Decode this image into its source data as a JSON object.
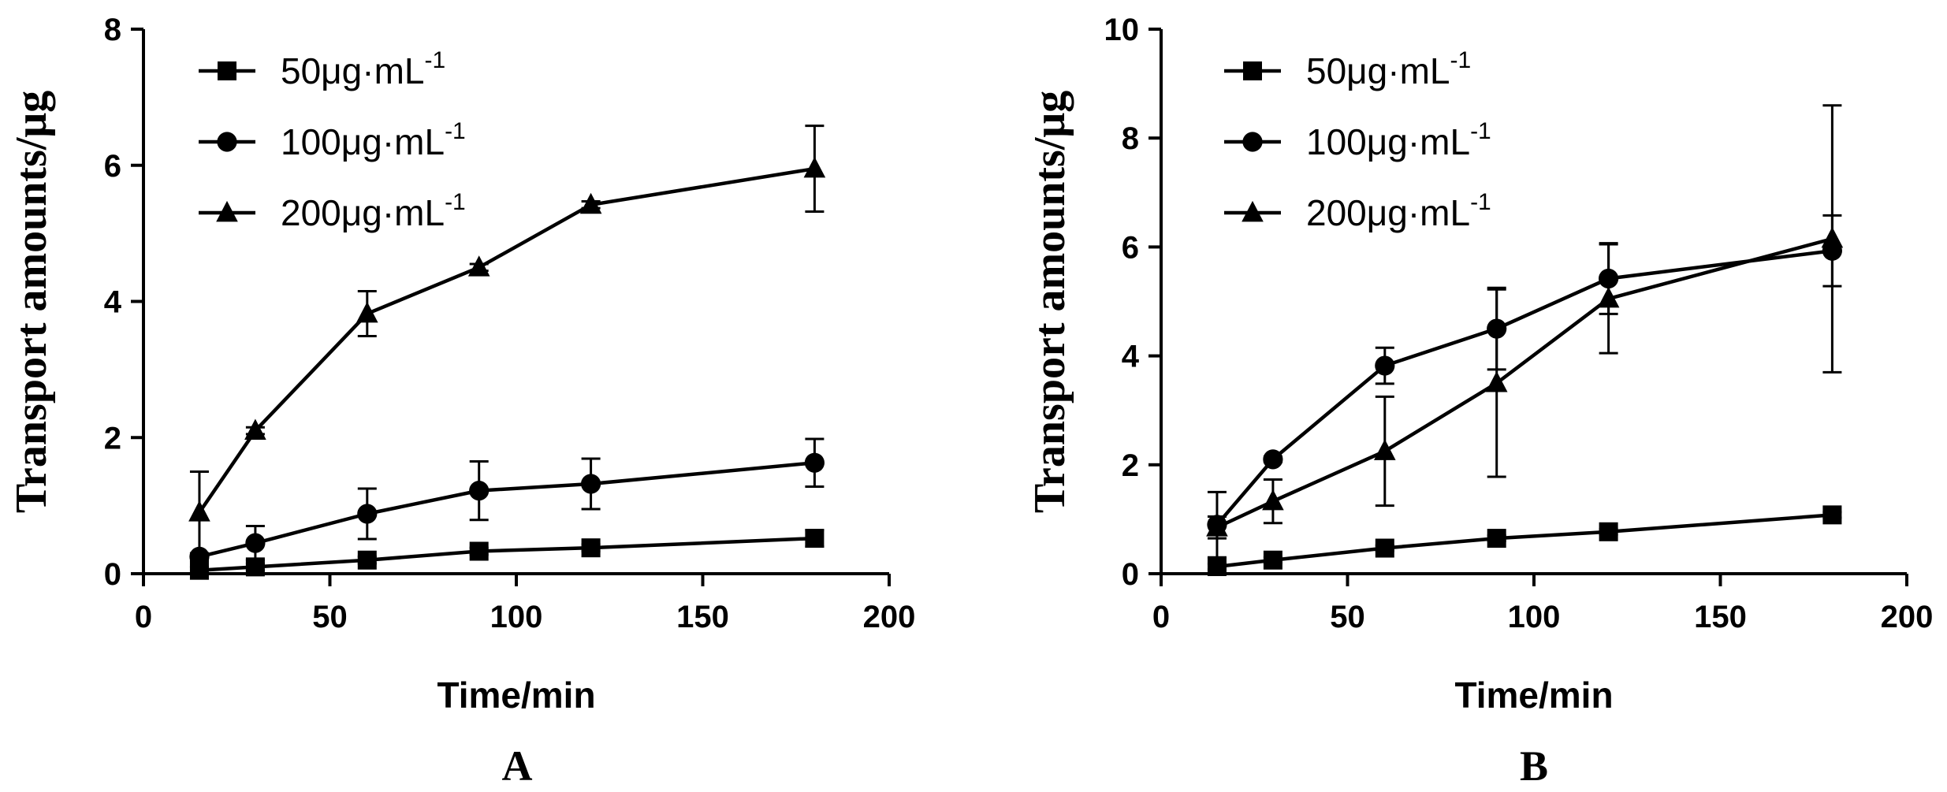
{
  "chart_data": [
    {
      "panel": "A",
      "type": "line",
      "xlabel": "Time/min",
      "ylabel": "Transport amounts/μg",
      "xlim": [
        0,
        200
      ],
      "ylim": [
        0,
        8
      ],
      "xticks": [
        0,
        50,
        100,
        150,
        200
      ],
      "yticks": [
        0,
        2,
        4,
        6,
        8
      ],
      "x": [
        15,
        30,
        60,
        90,
        120,
        180
      ],
      "legend_position": "top-left",
      "series": [
        {
          "name": "50μg·mL",
          "sup": "-1",
          "marker": "square",
          "values": [
            0.05,
            0.1,
            0.2,
            0.33,
            0.38,
            0.52
          ],
          "errors": [
            0.05,
            0.05,
            0.05,
            0.05,
            0.05,
            0.12
          ]
        },
        {
          "name": "100μg·mL",
          "sup": "-1",
          "marker": "circle",
          "values": [
            0.25,
            0.45,
            0.88,
            1.22,
            1.32,
            1.63
          ],
          "errors": [
            0.05,
            0.25,
            0.37,
            0.43,
            0.37,
            0.35
          ]
        },
        {
          "name": "200μg·mL",
          "sup": "-1",
          "marker": "triangle",
          "values": [
            0.9,
            2.1,
            3.82,
            4.5,
            5.42,
            5.95
          ],
          "errors": [
            0.6,
            0.05,
            0.33,
            0.05,
            0.05,
            0.63
          ]
        }
      ]
    },
    {
      "panel": "B",
      "type": "line",
      "xlabel": "Time/min",
      "ylabel": "Transport amounts/μg",
      "xlim": [
        0,
        200
      ],
      "ylim": [
        0,
        10
      ],
      "xticks": [
        0,
        50,
        100,
        150,
        200
      ],
      "yticks": [
        0,
        2,
        4,
        6,
        8,
        10
      ],
      "x": [
        15,
        30,
        60,
        90,
        120,
        180
      ],
      "legend_position": "top-left",
      "series": [
        {
          "name": "50μg·mL",
          "sup": "-1",
          "marker": "square",
          "values": [
            0.13,
            0.25,
            0.47,
            0.65,
            0.77,
            1.08
          ],
          "errors": [
            0.05,
            0.05,
            0.05,
            0.05,
            0.05,
            0.05
          ]
        },
        {
          "name": "100μg·mL",
          "sup": "-1",
          "marker": "circle",
          "values": [
            0.9,
            2.1,
            3.82,
            4.5,
            5.42,
            5.93
          ],
          "errors": [
            0.6,
            0.05,
            0.33,
            0.75,
            0.65,
            0.65
          ]
        },
        {
          "name": "200μg·mL",
          "sup": "-1",
          "marker": "triangle",
          "values": [
            0.85,
            1.33,
            2.25,
            3.5,
            5.05,
            6.15
          ],
          "errors": [
            0.2,
            0.4,
            1.0,
            1.72,
            1.0,
            2.45
          ]
        }
      ]
    }
  ]
}
